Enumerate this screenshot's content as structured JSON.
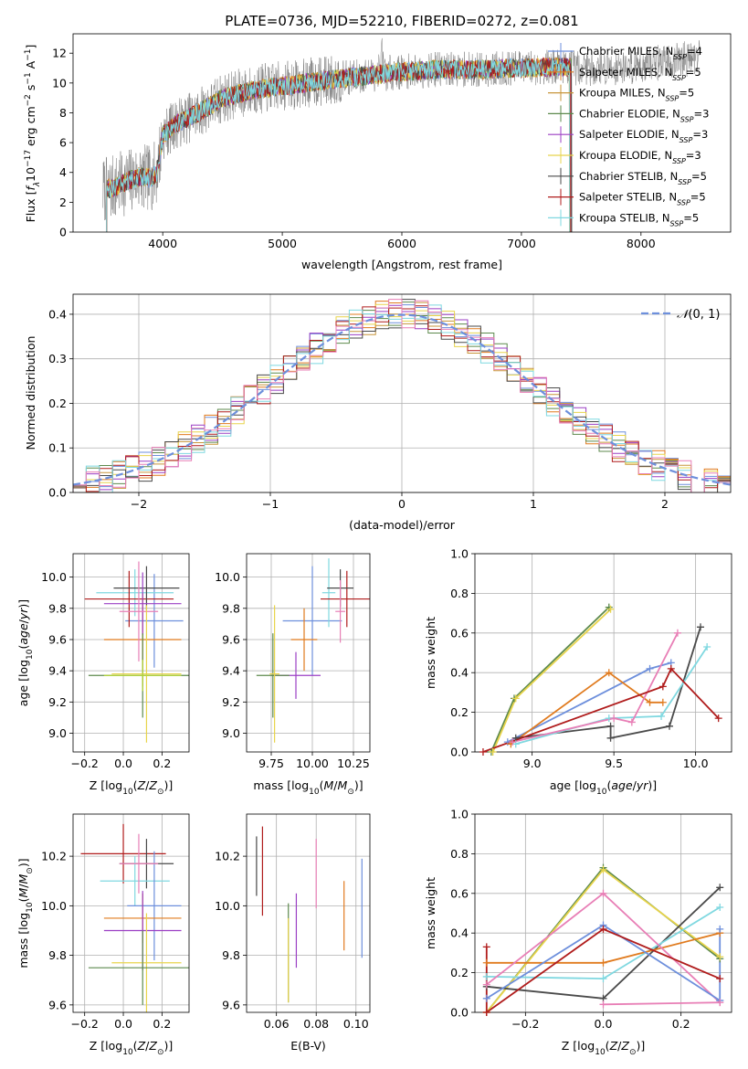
{
  "figure_title": "PLATE=0736, MJD=52210, FIBERID=0272, z=0.081",
  "colors": {
    "Chabrier MILES": "#6d8fdc",
    "Salpeter MILES": "#e07b1f",
    "Kroupa MILES": "#c8953a",
    "Chabrier ELODIE": "#5d8a4d",
    "Salpeter ELODIE": "#9b3fc4",
    "Kroupa ELODIE": "#e8d44c",
    "Chabrier STELIB": "#4a4a4a",
    "Salpeter STELIB": "#b01c1c",
    "Kroupa STELIB": "#7fd8e0",
    "extra_pink": "#e87fb6",
    "extra_lime": "#b5d638",
    "normal_curve": "#6d8fdc",
    "data_spectrum": "#808080"
  },
  "chart_data": [
    {
      "id": "spectrum",
      "type": "line",
      "xlabel": "wavelength [Angstrom, rest frame]",
      "ylabel": "Flux [fλ10^-17 erg cm^-2 s^-1 A^-1]",
      "xlim": [
        3250,
        8750
      ],
      "ylim": [
        0,
        13.3
      ],
      "xticks": [
        4000,
        5000,
        6000,
        7000,
        8000
      ],
      "yticks": [
        0,
        2,
        4,
        6,
        8,
        10,
        12
      ],
      "grid": false,
      "legend_position": "right",
      "legend": [
        {
          "name": "Chabrier MILES",
          "nssp": "4"
        },
        {
          "name": "Salpeter MILES",
          "nssp": "5"
        },
        {
          "name": "Kroupa MILES",
          "nssp": "5"
        },
        {
          "name": "Chabrier ELODIE",
          "nssp": "3"
        },
        {
          "name": "Salpeter ELODIE",
          "nssp": "3"
        },
        {
          "name": "Kroupa ELODIE",
          "nssp": "3"
        },
        {
          "name": "Chabrier STELIB",
          "nssp": "5"
        },
        {
          "name": "Salpeter STELIB",
          "nssp": "5"
        },
        {
          "name": "Kroupa STELIB",
          "nssp": "5"
        }
      ],
      "continuum": {
        "x": [
          3500,
          3600,
          3700,
          3800,
          3900,
          3950,
          4000,
          4100,
          4200,
          4300,
          4400,
          4500,
          4700,
          4900,
          5100,
          5300,
          5500,
          5700,
          5900,
          6100,
          6300,
          6500,
          6700,
          6900,
          7100,
          7300,
          7500,
          7700,
          7900,
          8100,
          8300,
          8500
        ],
        "y": [
          2.8,
          3.0,
          3.4,
          3.7,
          3.6,
          4.0,
          6.5,
          7.2,
          7.6,
          8.0,
          8.5,
          9.0,
          9.4,
          9.7,
          9.9,
          10.1,
          10.3,
          10.5,
          10.7,
          10.8,
          10.9,
          10.9,
          10.9,
          11.0,
          11.0,
          11.1,
          11.0,
          11.0,
          11.1,
          11.3,
          11.5,
          11.8
        ]
      },
      "model_range": [
        3500,
        7420
      ]
    },
    {
      "id": "residuals",
      "type": "histogram",
      "xlabel": "(data-model)/error",
      "ylabel": "Normed distribution",
      "xlim": [
        -2.5,
        2.5
      ],
      "ylim": [
        0,
        0.445
      ],
      "xticks": [
        -2,
        -1,
        0,
        1,
        2
      ],
      "yticks": [
        0,
        0.1,
        0.2,
        0.3,
        0.4
      ],
      "grid": true,
      "legend_position": "top-right",
      "normal_label": "N(0,1)",
      "bin_edges_start": -2.5,
      "bin_width": 0.1
    },
    {
      "id": "age_vs_Z",
      "type": "errorbar",
      "xlabel": "Z [log10(Z/Z☉)]",
      "ylabel": "age  [log10(age/yr)]",
      "xlim": [
        -0.26,
        0.34
      ],
      "ylim": [
        8.88,
        10.15
      ],
      "xticks": [
        -0.2,
        0.0,
        0.2
      ],
      "yticks": [
        9.0,
        9.2,
        9.4,
        9.6,
        9.8,
        10.0
      ],
      "grid": true,
      "points": [
        {
          "c": "Chabrier MILES",
          "x": 0.16,
          "y": 9.72,
          "xe": 0.15,
          "ye": 0.3
        },
        {
          "c": "Salpeter MILES",
          "x": 0.1,
          "y": 9.6,
          "xe": 0.2,
          "ye": 0.3
        },
        {
          "c": "Kroupa STELIB",
          "x": 0.06,
          "y": 9.9,
          "xe": 0.2,
          "ye": 0.15
        },
        {
          "c": "Salpeter STELIB",
          "x": 0.03,
          "y": 9.86,
          "xe": 0.23,
          "ye": 0.18
        },
        {
          "c": "Chabrier STELIB",
          "x": 0.12,
          "y": 9.93,
          "xe": 0.17,
          "ye": 0.14
        },
        {
          "c": "Salpeter ELODIE",
          "x": 0.1,
          "y": 9.83,
          "xe": 0.2,
          "ye": 0.2
        },
        {
          "c": "extra_pink",
          "x": 0.08,
          "y": 9.78,
          "xe": 0.1,
          "ye": 0.32
        },
        {
          "c": "Chabrier ELODIE",
          "x": 0.1,
          "y": 9.37,
          "xe": 0.28,
          "ye": 0.27
        },
        {
          "c": "Kroupa ELODIE",
          "x": 0.12,
          "y": 9.38,
          "xe": 0.18,
          "ye": 0.44
        },
        {
          "c": "extra_lime",
          "x": 0.1,
          "y": 9.37,
          "xe": 0.2,
          "ye": 0.1
        }
      ]
    },
    {
      "id": "age_vs_mass",
      "type": "errorbar",
      "xlabel": "mass [log10(M/M☉)]",
      "ylabel": "",
      "xlim": [
        9.6,
        10.35
      ],
      "ylim": [
        8.88,
        10.15
      ],
      "xticks": [
        9.75,
        10.0,
        10.25
      ],
      "yticks": [
        9.0,
        9.2,
        9.4,
        9.6,
        9.8,
        10.0
      ],
      "grid": true,
      "points": [
        {
          "c": "Chabrier MILES",
          "x": 10.0,
          "y": 9.72,
          "xe": 0.18,
          "ye": 0.35
        },
        {
          "c": "Salpeter MILES",
          "x": 9.95,
          "y": 9.6,
          "xe": 0.08,
          "ye": 0.2
        },
        {
          "c": "Kroupa STELIB",
          "x": 10.1,
          "y": 9.9,
          "xe": 0.04,
          "ye": 0.22
        },
        {
          "c": "Salpeter STELIB",
          "x": 10.21,
          "y": 9.86,
          "xe": 0.16,
          "ye": 0.18
        },
        {
          "c": "Chabrier STELIB",
          "x": 10.17,
          "y": 9.93,
          "xe": 0.08,
          "ye": 0.12
        },
        {
          "c": "Salpeter ELODIE",
          "x": 9.9,
          "y": 9.37,
          "xe": 0.15,
          "ye": 0.15
        },
        {
          "c": "extra_pink",
          "x": 10.17,
          "y": 9.78,
          "xe": 0.03,
          "ye": 0.2
        },
        {
          "c": "Chabrier ELODIE",
          "x": 9.76,
          "y": 9.37,
          "xe": 0.1,
          "ye": 0.27
        },
        {
          "c": "Kroupa ELODIE",
          "x": 9.77,
          "y": 9.38,
          "xe": 0.03,
          "ye": 0.44
        }
      ]
    },
    {
      "id": "weight_vs_age",
      "type": "line",
      "xlabel": "age  [log10(age/yr)]",
      "ylabel": "mass weight",
      "xlim": [
        8.65,
        10.22
      ],
      "ylim": [
        0,
        1.0
      ],
      "xticks": [
        9.0,
        9.5,
        10.0
      ],
      "yticks": [
        0.0,
        0.2,
        0.4,
        0.6,
        0.8,
        1.0
      ],
      "grid": true,
      "series": [
        {
          "c": "Chabrier ELODIE",
          "x": [
            8.75,
            8.89,
            9.47
          ],
          "y": [
            0.0,
            0.27,
            0.73
          ]
        },
        {
          "c": "Kroupa ELODIE",
          "x": [
            8.76,
            8.9,
            9.48
          ],
          "y": [
            0.0,
            0.27,
            0.72
          ]
        },
        {
          "c": "Chabrier MILES",
          "x": [
            8.85,
            9.72,
            9.85
          ],
          "y": [
            0.05,
            0.42,
            0.45
          ]
        },
        {
          "c": "Salpeter MILES",
          "x": [
            8.87,
            9.47,
            9.72,
            9.8
          ],
          "y": [
            0.04,
            0.4,
            0.25,
            0.25
          ]
        },
        {
          "c": "Chabrier STELIB",
          "x": [
            8.9,
            9.48,
            9.48,
            9.84,
            10.03
          ],
          "y": [
            0.07,
            0.13,
            0.07,
            0.13,
            0.63
          ]
        },
        {
          "c": "Kroupa STELIB",
          "x": [
            8.9,
            9.47,
            9.79,
            10.07
          ],
          "y": [
            0.04,
            0.17,
            0.18,
            0.53
          ]
        },
        {
          "c": "extra_pink",
          "x": [
            8.88,
            9.5,
            9.61,
            9.89
          ],
          "y": [
            0.05,
            0.17,
            0.15,
            0.6
          ]
        },
        {
          "c": "Salpeter STELIB",
          "x": [
            8.7,
            9.8,
            9.85,
            10.14
          ],
          "y": [
            0.0,
            0.33,
            0.42,
            0.17
          ]
        }
      ]
    },
    {
      "id": "mass_vs_Z",
      "type": "errorbar",
      "xlabel": "Z [log10(Z/Z☉)]",
      "ylabel": "mass [log10(M/M☉)]",
      "xlim": [
        -0.26,
        0.34
      ],
      "ylim": [
        9.57,
        10.37
      ],
      "xticks": [
        -0.2,
        0.0,
        0.2
      ],
      "yticks": [
        9.6,
        9.8,
        10.0,
        10.2
      ],
      "grid": true,
      "points": [
        {
          "c": "Salpeter STELIB",
          "x": 0.0,
          "y": 10.21,
          "xe": 0.22,
          "ye": 0.12
        },
        {
          "c": "Chabrier STELIB",
          "x": 0.12,
          "y": 10.17,
          "xe": 0.14,
          "ye": 0.1
        },
        {
          "c": "Kroupa STELIB",
          "x": 0.06,
          "y": 10.1,
          "xe": 0.18,
          "ye": 0.1
        },
        {
          "c": "Chabrier MILES",
          "x": 0.16,
          "y": 10.0,
          "xe": 0.14,
          "ye": 0.22
        },
        {
          "c": "Salpeter MILES",
          "x": 0.1,
          "y": 9.95,
          "xe": 0.2,
          "ye": 0.1
        },
        {
          "c": "Salpeter ELODIE",
          "x": 0.1,
          "y": 9.9,
          "xe": 0.2,
          "ye": 0.16
        },
        {
          "c": "extra_pink",
          "x": 0.08,
          "y": 10.17,
          "xe": 0.1,
          "ye": 0.12
        },
        {
          "c": "Kroupa ELODIE",
          "x": 0.12,
          "y": 9.77,
          "xe": 0.18,
          "ye": 0.2
        },
        {
          "c": "Chabrier ELODIE",
          "x": 0.1,
          "y": 9.75,
          "xe": 0.28,
          "ye": 0.15
        }
      ]
    },
    {
      "id": "mass_vs_EBV",
      "type": "errorbar",
      "xlabel": "E(B-V)",
      "ylabel": "",
      "xlim": [
        0.045,
        0.107
      ],
      "ylim": [
        9.57,
        10.37
      ],
      "xticks": [
        0.06,
        0.08,
        0.1
      ],
      "yticks": [
        9.6,
        9.8,
        10.0,
        10.2
      ],
      "grid": true,
      "points": [
        {
          "c": "Chabrier STELIB",
          "x": 0.05,
          "y": 10.16,
          "xe": 0,
          "ye": 0.12
        },
        {
          "c": "Salpeter STELIB",
          "x": 0.053,
          "y": 10.14,
          "xe": 0,
          "ye": 0.18
        },
        {
          "c": "Chabrier ELODIE",
          "x": 0.066,
          "y": 9.81,
          "xe": 0,
          "ye": 0.2
        },
        {
          "c": "Kroupa ELODIE",
          "x": 0.066,
          "y": 9.78,
          "xe": 0,
          "ye": 0.17
        },
        {
          "c": "Salpeter ELODIE",
          "x": 0.07,
          "y": 9.9,
          "xe": 0,
          "ye": 0.15
        },
        {
          "c": "extra_pink",
          "x": 0.08,
          "y": 10.13,
          "xe": 0,
          "ye": 0.14
        },
        {
          "c": "Salpeter MILES",
          "x": 0.094,
          "y": 9.96,
          "xe": 0,
          "ye": 0.14
        },
        {
          "c": "Chabrier MILES",
          "x": 0.103,
          "y": 9.99,
          "xe": 0,
          "ye": 0.2
        }
      ]
    },
    {
      "id": "weight_vs_Z",
      "type": "line",
      "xlabel": "Z [log10(Z/Z☉)]",
      "ylabel": "mass weight",
      "xlim": [
        -0.33,
        0.33
      ],
      "ylim": [
        0,
        1.0
      ],
      "xticks": [
        -0.2,
        0.0,
        0.2
      ],
      "yticks": [
        0.0,
        0.2,
        0.4,
        0.6,
        0.8,
        1.0
      ],
      "grid": true,
      "series": [
        {
          "c": "Chabrier ELODIE",
          "x": [
            -0.3,
            0.0,
            0.3
          ],
          "y": [
            0.0,
            0.73,
            0.27
          ]
        },
        {
          "c": "Kroupa ELODIE",
          "x": [
            -0.3,
            0.0,
            0.3
          ],
          "y": [
            0.0,
            0.72,
            0.28
          ]
        },
        {
          "c": "Chabrier STELIB",
          "x": [
            -0.3,
            0.0,
            0.3
          ],
          "y": [
            0.13,
            0.07,
            0.63
          ]
        },
        {
          "c": "Kroupa STELIB",
          "x": [
            -0.3,
            0.0,
            0.3
          ],
          "y": [
            0.18,
            0.17,
            0.53
          ]
        },
        {
          "c": "Salpeter MILES",
          "x": [
            -0.3,
            0.0,
            0.3
          ],
          "y": [
            0.25,
            0.25,
            0.4
          ]
        },
        {
          "c": "extra_pink",
          "x": [
            -0.3,
            0.0,
            0.3
          ],
          "y": [
            0.14,
            0.6,
            0.05
          ]
        },
        {
          "c": "Chabrier MILES",
          "x": [
            -0.3,
            0.0,
            0.3
          ],
          "y": [
            0.07,
            0.44,
            0.06
          ]
        },
        {
          "c": "Salpeter STELIB",
          "x": [
            -0.3,
            0.0,
            0.3
          ],
          "y": [
            0.0,
            0.42,
            0.17
          ]
        },
        {
          "c": "Salpeter STELIB",
          "x": [
            -0.3,
            -0.3
          ],
          "y": [
            0.0,
            0.33
          ]
        },
        {
          "c": "Chabrier MILES",
          "x": [
            0.3,
            0.3
          ],
          "y": [
            0.06,
            0.42
          ]
        },
        {
          "c": "extra_pink",
          "x": [
            0.0,
            0.3
          ],
          "y": [
            0.04,
            0.05
          ]
        }
      ]
    }
  ]
}
